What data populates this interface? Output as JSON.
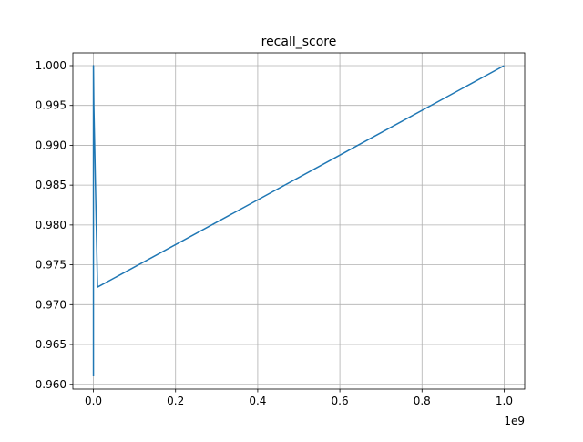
{
  "chart_data": {
    "type": "line",
    "title": "recall_score",
    "xlabel": "",
    "ylabel": "",
    "x_offset_label": "1e9",
    "xlim": [
      -0.05,
      1.05
    ],
    "ylim": [
      0.9594,
      1.0016
    ],
    "x_ticks": [
      0.0,
      0.2,
      0.4,
      0.6,
      0.8,
      1.0
    ],
    "x_tick_labels": [
      "0.0",
      "0.2",
      "0.4",
      "0.6",
      "0.8",
      "1.0"
    ],
    "y_ticks": [
      0.96,
      0.965,
      0.97,
      0.975,
      0.98,
      0.985,
      0.99,
      0.995,
      1.0
    ],
    "y_tick_labels": [
      "0.960",
      "0.965",
      "0.970",
      "0.975",
      "0.980",
      "0.985",
      "0.990",
      "0.995",
      "1.000"
    ],
    "grid": true,
    "series": [
      {
        "color": "#1f77b4",
        "x": [
          0.0,
          0.0,
          0.0,
          0.0001,
          0.001,
          0.01,
          1.0
        ],
        "y": [
          0.961,
          0.961,
          1.0,
          1.0,
          0.995,
          0.9722,
          1.0
        ]
      }
    ]
  }
}
